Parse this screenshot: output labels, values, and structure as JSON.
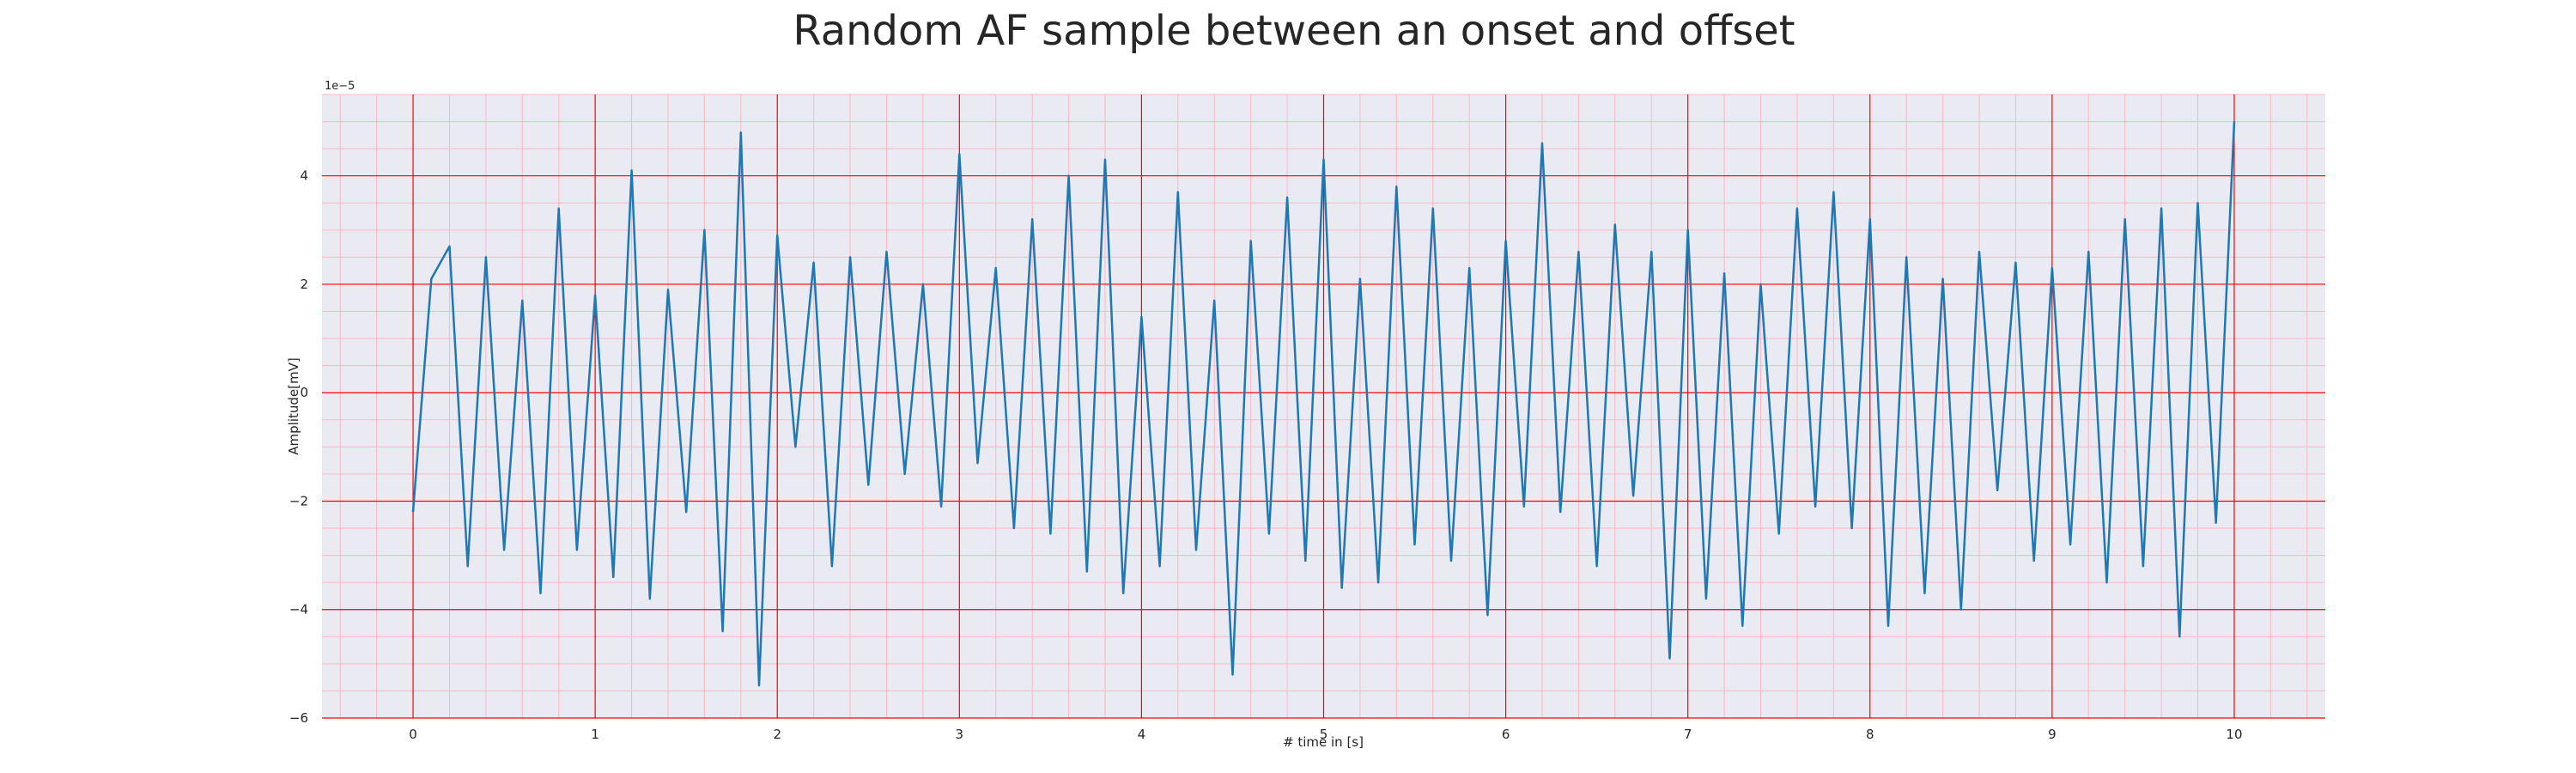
{
  "chart_data": {
    "type": "line",
    "title": "Random AF sample between an onset and offset",
    "xlabel": "# time in [s]",
    "ylabel": "Amplitude[mV]",
    "y_offset_label": "1e−5",
    "xlim": [
      -0.5,
      10.5
    ],
    "ylim": [
      -6,
      5.5
    ],
    "x_ticks": [
      0,
      1,
      2,
      3,
      4,
      5,
      6,
      7,
      8,
      9,
      10
    ],
    "y_ticks": [
      -6,
      -4,
      -2,
      0,
      2,
      4
    ],
    "grid": true,
    "minor_grid": true,
    "colors": {
      "line": "#1f77b4",
      "background": "#eaeaf2",
      "major_grid": "#ff0000",
      "minor_grid": "#ffb6c1"
    },
    "series": [
      {
        "x": [
          0,
          0.1,
          0.2,
          0.3,
          0.4,
          0.5,
          0.6,
          0.7,
          0.8,
          0.9,
          1.0,
          1.1,
          1.2,
          1.3,
          1.4,
          1.5,
          1.6,
          1.7,
          1.8,
          1.9,
          2.0,
          2.1,
          2.2,
          2.3,
          2.4,
          2.5,
          2.6,
          2.7,
          2.8,
          2.9,
          3.0,
          3.1,
          3.2,
          3.3,
          3.4,
          3.5,
          3.6,
          3.7,
          3.8,
          3.9,
          4.0,
          4.1,
          4.2,
          4.3,
          4.4,
          4.5,
          4.6,
          4.7,
          4.8,
          4.9,
          5.0,
          5.1,
          5.2,
          5.3,
          5.4,
          5.5,
          5.6,
          5.7,
          5.8,
          5.9,
          6.0,
          6.1,
          6.2,
          6.3,
          6.4,
          6.5,
          6.6,
          6.7,
          6.8,
          6.9,
          7.0,
          7.1,
          7.2,
          7.3,
          7.4,
          7.5,
          7.6,
          7.7,
          7.8,
          7.9,
          8.0,
          8.1,
          8.2,
          8.3,
          8.4,
          8.5,
          8.6,
          8.7,
          8.8,
          8.9,
          9.0,
          9.1,
          9.2,
          9.3,
          9.4,
          9.5,
          9.6,
          9.7,
          9.8,
          9.9,
          10.0
        ],
        "y": [
          -2.2,
          2.1,
          2.7,
          -3.2,
          2.5,
          -2.9,
          1.7,
          -3.7,
          3.4,
          -2.9,
          1.8,
          -3.4,
          4.1,
          -3.8,
          1.9,
          -2.2,
          3.0,
          -4.4,
          4.8,
          -5.4,
          2.9,
          -1.0,
          2.4,
          -3.2,
          2.5,
          -1.7,
          2.6,
          -1.5,
          2.0,
          -2.1,
          4.4,
          -1.3,
          2.3,
          -2.5,
          3.2,
          -2.6,
          4.0,
          -3.3,
          4.3,
          -3.7,
          1.4,
          -3.2,
          3.7,
          -2.9,
          1.7,
          -5.2,
          2.8,
          -2.6,
          3.6,
          -3.1,
          4.3,
          -3.6,
          2.1,
          -3.5,
          3.8,
          -2.8,
          3.4,
          -3.1,
          2.3,
          -4.1,
          2.8,
          -2.1,
          4.6,
          -2.2,
          2.6,
          -3.2,
          3.1,
          -1.9,
          2.6,
          -4.9,
          3.0,
          -3.8,
          2.2,
          -4.3,
          2.0,
          -2.6,
          3.4,
          -2.1,
          3.7,
          -2.5,
          3.2,
          -4.3,
          2.5,
          -3.7,
          2.1,
          -4.0,
          2.6,
          -1.8,
          2.4,
          -3.1,
          2.3,
          -2.8,
          2.6,
          -3.5,
          3.2,
          -3.2,
          3.4,
          -4.5,
          3.5,
          -2.4,
          5.0
        ]
      }
    ]
  }
}
